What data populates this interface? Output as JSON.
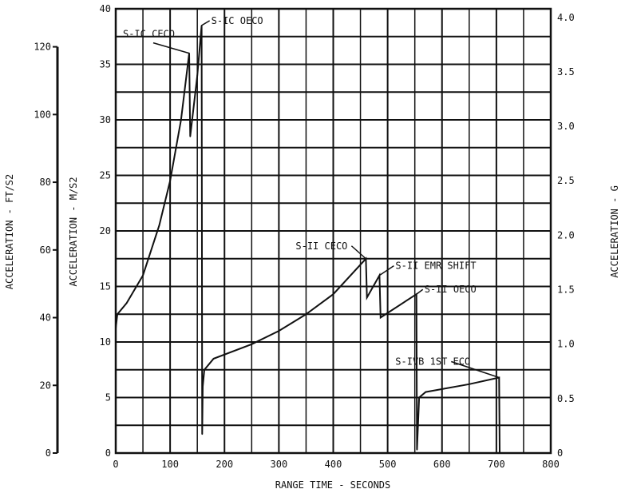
{
  "chart_data": {
    "type": "line",
    "xlabel": "RANGE TIME - SECONDS",
    "ylabel": "ACCELERATION - M/S2",
    "ylabel_left": "ACCELERATION - FT/S2",
    "ylabel_right": "ACCELERATION - G",
    "xlim": [
      0,
      800
    ],
    "ylim": [
      0,
      40
    ],
    "x_ticks": [
      "0",
      "100",
      "200",
      "300",
      "400",
      "500",
      "600",
      "700",
      "800"
    ],
    "y_ticks": [
      "0",
      "5",
      "10",
      "15",
      "20",
      "25",
      "30",
      "35",
      "40"
    ],
    "ft_ticks": [
      "0",
      "20",
      "40",
      "60",
      "80",
      "100",
      "120"
    ],
    "g_ticks": [
      "0",
      "0.5",
      "1.0",
      "1.5",
      "2.0",
      "2.5",
      "3.0",
      "3.5",
      "4.0"
    ],
    "grid": true,
    "series": [
      {
        "name": "Acceleration",
        "x": [
          0,
          3,
          20,
          50,
          80,
          100,
          120,
          130,
          135,
          137,
          150,
          158,
          159,
          160,
          163,
          180,
          250,
          300,
          350,
          400,
          460,
          462,
          485,
          487,
          553,
          554,
          558,
          570,
          650,
          705,
          706,
          715
        ],
        "y": [
          11.2,
          12.5,
          13.5,
          16,
          20.5,
          24.5,
          30,
          34,
          36,
          28.5,
          34,
          38.5,
          1.7,
          6,
          7.5,
          8.5,
          9.8,
          11,
          12.5,
          14.3,
          17.5,
          14,
          16,
          12.2,
          14.3,
          0.3,
          5,
          5.5,
          6.2,
          6.8,
          0,
          0
        ]
      }
    ],
    "annotations": [
      {
        "text": "S-IC CECO",
        "x": 135,
        "y": 36
      },
      {
        "text": "S-IC OECO",
        "x": 158,
        "y": 38.5
      },
      {
        "text": "S-II CECO",
        "x": 460,
        "y": 17.5
      },
      {
        "text": "S-II EMR SHIFT",
        "x": 485,
        "y": 16
      },
      {
        "text": "S-II OECO",
        "x": 553,
        "y": 14.3
      },
      {
        "text": "S-IVB 1ST ECO",
        "x": 705,
        "y": 6.8
      }
    ]
  }
}
